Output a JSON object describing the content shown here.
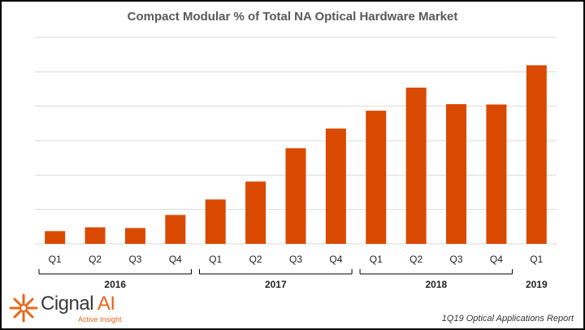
{
  "chart_data": {
    "type": "bar",
    "title": "Compact Modular % of Total NA Optical Hardware Market",
    "xlabel": "",
    "ylabel": "",
    "categories": [
      "Q1",
      "Q2",
      "Q3",
      "Q4",
      "Q1",
      "Q2",
      "Q3",
      "Q4",
      "Q1",
      "Q2",
      "Q3",
      "Q4",
      "Q1"
    ],
    "year_groups": [
      {
        "label": "2016",
        "start": 0,
        "end": 3
      },
      {
        "label": "2017",
        "start": 4,
        "end": 7
      },
      {
        "label": "2018",
        "start": 8,
        "end": 11
      },
      {
        "label": "2019",
        "start": 12,
        "end": 12
      }
    ],
    "values": [
      3.7,
      4.8,
      4.6,
      8.4,
      12.9,
      18.1,
      27.8,
      33.5,
      38.7,
      45.4,
      40.6,
      40.5,
      51.9
    ],
    "ylim": [
      0,
      60
    ],
    "y_gridlines": 6,
    "y_tick_labels_visible": false,
    "grid": true,
    "bar_color": "#d94a00",
    "grid_color": "#d9d9d9"
  },
  "logo": {
    "name_part1": "Cignal",
    "name_part2": "AI",
    "tagline": "Active Insight",
    "color": "#e8661a"
  },
  "footer": {
    "report": "1Q19 Optical Applications Report"
  }
}
